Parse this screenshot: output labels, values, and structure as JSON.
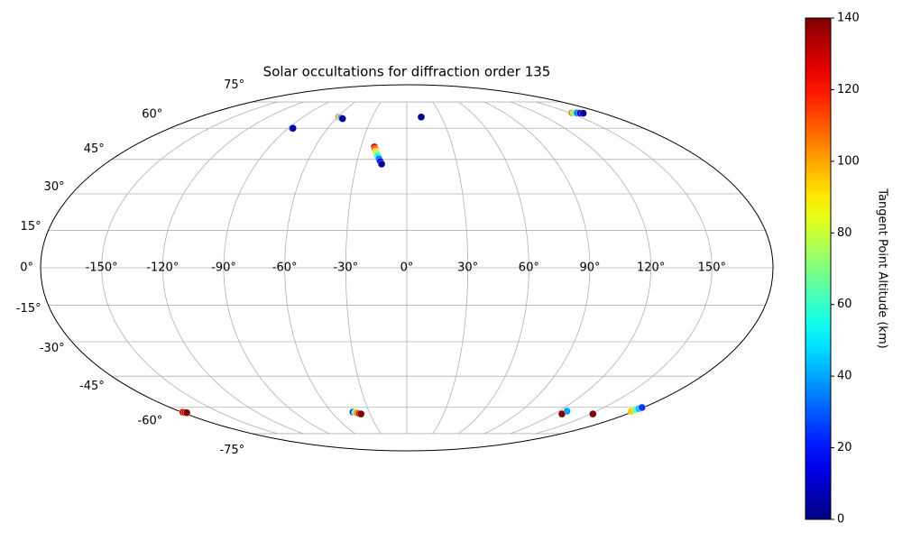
{
  "chart_data": {
    "type": "scatter",
    "projection": "mollweide",
    "title": "Solar occultations for diffraction order 135",
    "grid": true,
    "colormap": "jet",
    "colorbar_label": "Tangent Point Altitude (km)",
    "clim": [
      0,
      140
    ],
    "cticks": [
      0,
      20,
      40,
      60,
      80,
      100,
      120,
      140
    ],
    "xlim": [
      -180,
      180
    ],
    "ylim": [
      -90,
      90
    ],
    "xticks": [
      {
        "value": -150,
        "label": "-150°"
      },
      {
        "value": -120,
        "label": "-120°"
      },
      {
        "value": -90,
        "label": "-90°"
      },
      {
        "value": -60,
        "label": "-60°"
      },
      {
        "value": -30,
        "label": "-30°"
      },
      {
        "value": 0,
        "label": "0°"
      },
      {
        "value": 30,
        "label": "30°"
      },
      {
        "value": 60,
        "label": "60°"
      },
      {
        "value": 90,
        "label": "90°"
      },
      {
        "value": 120,
        "label": "120°"
      },
      {
        "value": 150,
        "label": "150°"
      }
    ],
    "yticks": [
      {
        "value": -75,
        "label": "-75°"
      },
      {
        "value": -60,
        "label": "-60°"
      },
      {
        "value": -45,
        "label": "-45°"
      },
      {
        "value": -30,
        "label": "-30°"
      },
      {
        "value": -15,
        "label": "-15°"
      },
      {
        "value": 0,
        "label": "0°"
      },
      {
        "value": 15,
        "label": "15°"
      },
      {
        "value": 30,
        "label": "30°"
      },
      {
        "value": 45,
        "label": "45°"
      },
      {
        "value": 60,
        "label": "60°"
      },
      {
        "value": 75,
        "label": "75°"
      }
    ],
    "x": [
      -87,
      -86.5,
      -59,
      -57.5,
      -56,
      -55,
      -54.5,
      -21.2,
      -20.5,
      -19.7,
      -18.9,
      -18,
      -17,
      -16,
      -15,
      12.5,
      152.5,
      154.5,
      157,
      159.5,
      161.7,
      -179,
      -178,
      -177,
      -43,
      -41.5,
      -40,
      -38.5,
      -37.4,
      126.7,
      126.7,
      152,
      177.5,
      178,
      178.5,
      179
    ],
    "y": [
      60,
      60,
      66,
      65.8,
      65.5,
      65.3,
      65.1,
      50.8,
      49.8,
      48.7,
      47.6,
      46.5,
      45.3,
      44.1,
      42.9,
      66,
      68.4,
      68.4,
      68.3,
      68.2,
      68.1,
      -62.5,
      -62.7,
      -62.8,
      -62.5,
      -62.7,
      -63,
      -63.3,
      -63.5,
      -62,
      -63.5,
      -63.5,
      -62,
      -61.3,
      -60.7,
      -60.1
    ],
    "c": [
      3,
      5,
      105,
      70,
      30,
      10,
      3,
      130,
      110,
      92,
      75,
      55,
      35,
      15,
      3,
      3,
      105,
      70,
      35,
      12,
      3,
      125,
      135,
      140,
      25,
      70,
      105,
      130,
      140,
      40,
      140,
      140,
      95,
      70,
      45,
      25
    ]
  }
}
